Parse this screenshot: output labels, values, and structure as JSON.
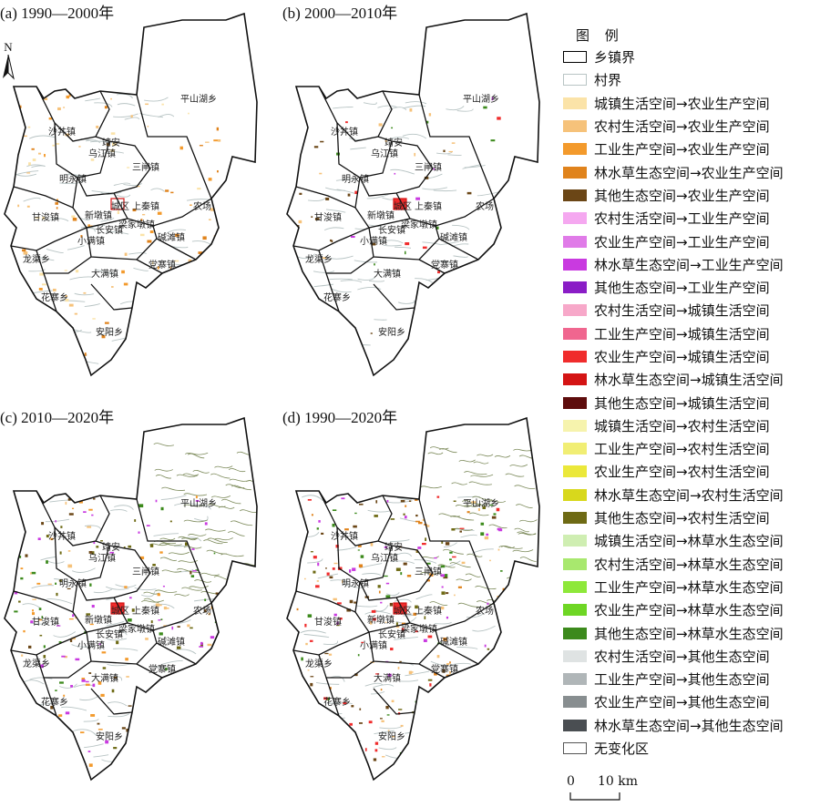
{
  "panels": [
    {
      "title": "(a) 1990—2000年",
      "density": 0.55,
      "scheme": "orange"
    },
    {
      "title": "(b) 2000—2010年",
      "density": 0.25,
      "scheme": "mixed"
    },
    {
      "title": "(c) 2010—2020年",
      "density": 0.85,
      "scheme": "green"
    },
    {
      "title": "(d) 1990—2020年",
      "density": 1.0,
      "scheme": "all"
    }
  ],
  "north_label": "N",
  "places": [
    "平山湖乡",
    "沙井镇",
    "乌江镇",
    "靖安",
    "三闸镇",
    "明永镇",
    "党寨镇",
    "新墩镇",
    "长安镇",
    "甘浚镇",
    "小满镇",
    "碱滩镇",
    "农场",
    "龙渠乡",
    "大满镇",
    "花寨乡",
    "安阳乡",
    "城区",
    "梁家墩镇",
    "上秦镇"
  ],
  "legend": {
    "title": "图 例",
    "items": [
      {
        "label": "乡镇界",
        "fill": "#ffffff",
        "border": "#000000"
      },
      {
        "label": "村界",
        "fill": "#ffffff",
        "border": "#b8c4c4"
      },
      {
        "label": "城镇生活空间→农业生产空间",
        "fill": "#fbe3a8",
        "border": ""
      },
      {
        "label": "农村生活空间→农业生产空间",
        "fill": "#f6c27a",
        "border": ""
      },
      {
        "label": "工业生产空间→农业生产空间",
        "fill": "#f39a2c",
        "border": ""
      },
      {
        "label": "林水草生态空间→农业生产空间",
        "fill": "#e0831c",
        "border": ""
      },
      {
        "label": "其他生态空间→农业生产空间",
        "fill": "#6b4616",
        "border": ""
      },
      {
        "label": "农村生活空间→工业生产空间",
        "fill": "#f5a8f0",
        "border": ""
      },
      {
        "label": "农业生产空间→工业生产空间",
        "fill": "#e07be8",
        "border": ""
      },
      {
        "label": "林水草生态空间→工业生产空间",
        "fill": "#c93ae0",
        "border": ""
      },
      {
        "label": "其他生态空间→工业生产空间",
        "fill": "#8a1dc6",
        "border": ""
      },
      {
        "label": "农村生活空间→城镇生活空间",
        "fill": "#f7a8c9",
        "border": ""
      },
      {
        "label": "工业生产空间→城镇生活空间",
        "fill": "#f0668f",
        "border": ""
      },
      {
        "label": "农业生产空间→城镇生活空间",
        "fill": "#f02c2c",
        "border": ""
      },
      {
        "label": "林水草生态空间→城镇生活空间",
        "fill": "#d41414",
        "border": ""
      },
      {
        "label": "其他生态空间→城镇生活空间",
        "fill": "#5e0c0c",
        "border": ""
      },
      {
        "label": "城镇生活空间→农村生活空间",
        "fill": "#f6f3ad",
        "border": ""
      },
      {
        "label": "工业生产空间→农村生活空间",
        "fill": "#f1ee74",
        "border": ""
      },
      {
        "label": "农业生产空间→农村生活空间",
        "fill": "#ebe83a",
        "border": ""
      },
      {
        "label": "林水草生态空间→农村生活空间",
        "fill": "#d8d81c",
        "border": ""
      },
      {
        "label": "其他生态空间→农村生活空间",
        "fill": "#6e6a14",
        "border": ""
      },
      {
        "label": "城镇生活空间→林草水生态空间",
        "fill": "#cfeeb2",
        "border": ""
      },
      {
        "label": "农村生活空间→林草水生态空间",
        "fill": "#a8e86e",
        "border": ""
      },
      {
        "label": "工业生产空间→林草水生态空间",
        "fill": "#8ee83a",
        "border": ""
      },
      {
        "label": "农业生产空间→林草水生态空间",
        "fill": "#6ed624",
        "border": ""
      },
      {
        "label": "其他生态空间→林草水生态空间",
        "fill": "#3c8a1c",
        "border": ""
      },
      {
        "label": "农村生活空间→其他生态空间",
        "fill": "#dfe3e3",
        "border": ""
      },
      {
        "label": "工业生产空间→其他生态空间",
        "fill": "#b0b6b8",
        "border": ""
      },
      {
        "label": "农业生产空间→其他生态空间",
        "fill": "#888e90",
        "border": ""
      },
      {
        "label": "林水草生态空间→其他生态空间",
        "fill": "#4a4e52",
        "border": ""
      },
      {
        "label": "无变化区",
        "fill": "#ffffff",
        "border": "#555555"
      }
    ]
  },
  "scale": {
    "zero": "0",
    "label": "10 km"
  }
}
